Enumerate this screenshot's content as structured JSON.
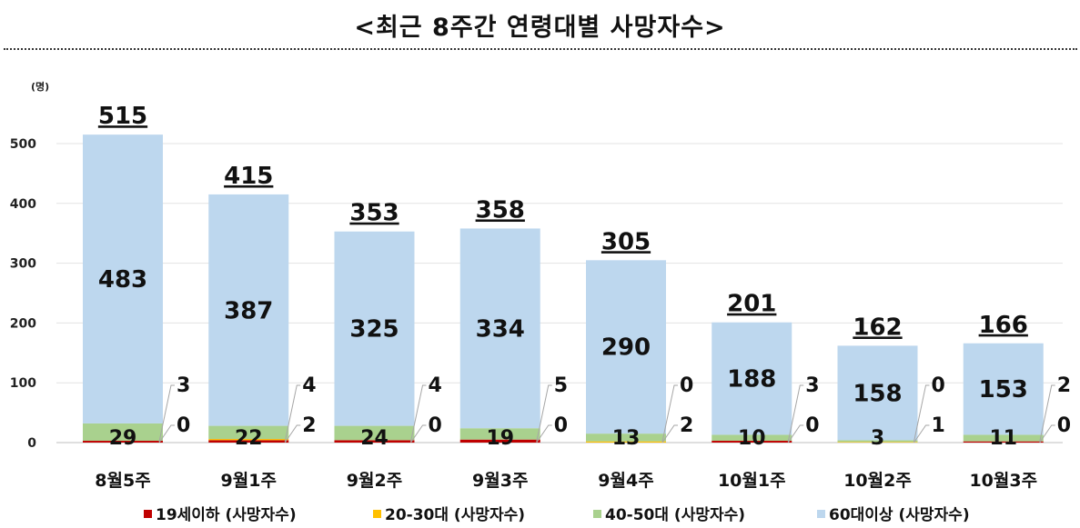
{
  "chart_data": {
    "type": "bar",
    "stacked": true,
    "title": "<최근 8주간 연령대별 사망자수>",
    "unit_label": "(명)",
    "categories": [
      "8월5주",
      "9월1주",
      "9월2주",
      "9월3주",
      "9월4주",
      "10월1주",
      "10월2주",
      "10월3주"
    ],
    "totals": [
      515,
      415,
      353,
      358,
      305,
      201,
      162,
      166
    ],
    "series": [
      {
        "name": "19세이하 (사망자수)",
        "color": "#c00000",
        "values": [
          3,
          4,
          4,
          5,
          0,
          3,
          0,
          2
        ]
      },
      {
        "name": "20-30대 (사망자수)",
        "color": "#ffc000",
        "values": [
          0,
          2,
          0,
          0,
          2,
          0,
          1,
          0
        ]
      },
      {
        "name": "40-50대 (사망자수)",
        "color": "#a9d18e",
        "values": [
          29,
          22,
          24,
          19,
          13,
          10,
          3,
          11
        ]
      },
      {
        "name": "60대이상 (사망자수)",
        "color": "#bdd7ee",
        "values": [
          483,
          387,
          325,
          334,
          290,
          188,
          158,
          153
        ]
      }
    ],
    "ylim": [
      0,
      500
    ],
    "yticks": [
      0,
      100,
      200,
      300,
      400,
      500
    ],
    "grid": true,
    "legend_position": "bottom"
  }
}
